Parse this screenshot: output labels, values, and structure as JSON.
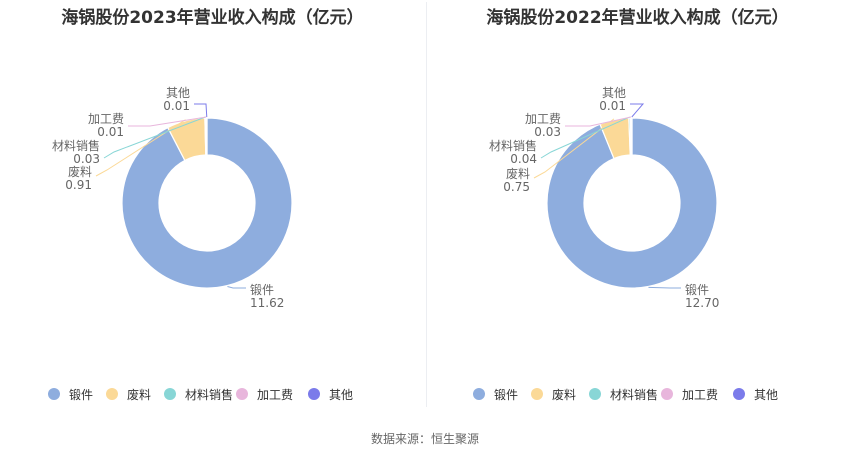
{
  "source": "数据来源：恒生聚源",
  "colors": {
    "锻件": "#8eadde",
    "废料": "#fbd997",
    "材料销售": "#88d6d6",
    "加工费": "#e8b6dc",
    "其他": "#7b7bea"
  },
  "chart_data": [
    {
      "type": "pie",
      "title": "海锅股份2023年营业收入构成（亿元）",
      "categories": [
        "锻件",
        "废料",
        "材料销售",
        "加工费",
        "其他"
      ],
      "values": [
        11.62,
        0.91,
        0.03,
        0.01,
        0.01
      ],
      "value_labels": [
        "11.62",
        "0.91",
        "0.03",
        "0.01",
        "0.01"
      ],
      "legend": [
        "锻件",
        "废料",
        "材料销售",
        "加工费",
        "其他"
      ],
      "legend_position": "bottom"
    },
    {
      "type": "pie",
      "title": "海锅股份2022年营业收入构成（亿元）",
      "categories": [
        "锻件",
        "废料",
        "材料销售",
        "加工费",
        "其他"
      ],
      "values": [
        12.7,
        0.75,
        0.04,
        0.03,
        0.01
      ],
      "value_labels": [
        "12.70",
        "0.75",
        "0.04",
        "0.03",
        "0.01"
      ],
      "legend": [
        "锻件",
        "废料",
        "材料销售",
        "加工费",
        "其他"
      ],
      "legend_position": "bottom"
    }
  ]
}
